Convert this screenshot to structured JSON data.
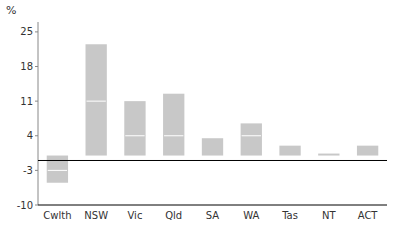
{
  "chart_data": {
    "type": "bar",
    "ylabel": "%",
    "categories": [
      "Cwlth",
      "NSW",
      "Vic",
      "Qld",
      "SA",
      "WA",
      "Tas",
      "NT",
      "ACT"
    ],
    "values": [
      0,
      22.5,
      11,
      12.5,
      3.5,
      6.5,
      2.0,
      0.4,
      2.0
    ],
    "bottoms": [
      -5.5,
      0,
      0,
      0,
      0,
      0,
      0,
      0,
      0
    ],
    "color": "#c8c8c8",
    "dividers": {
      "color": "#ffffff",
      "values": [
        -3,
        11,
        4,
        4,
        null,
        4,
        null,
        null,
        null
      ]
    },
    "hline": {
      "y": -1.0,
      "color": "#000000"
    },
    "ylim": [
      -10,
      27
    ],
    "yticks": [
      -10,
      -3,
      4,
      11,
      18,
      25
    ],
    "grid": false
  }
}
